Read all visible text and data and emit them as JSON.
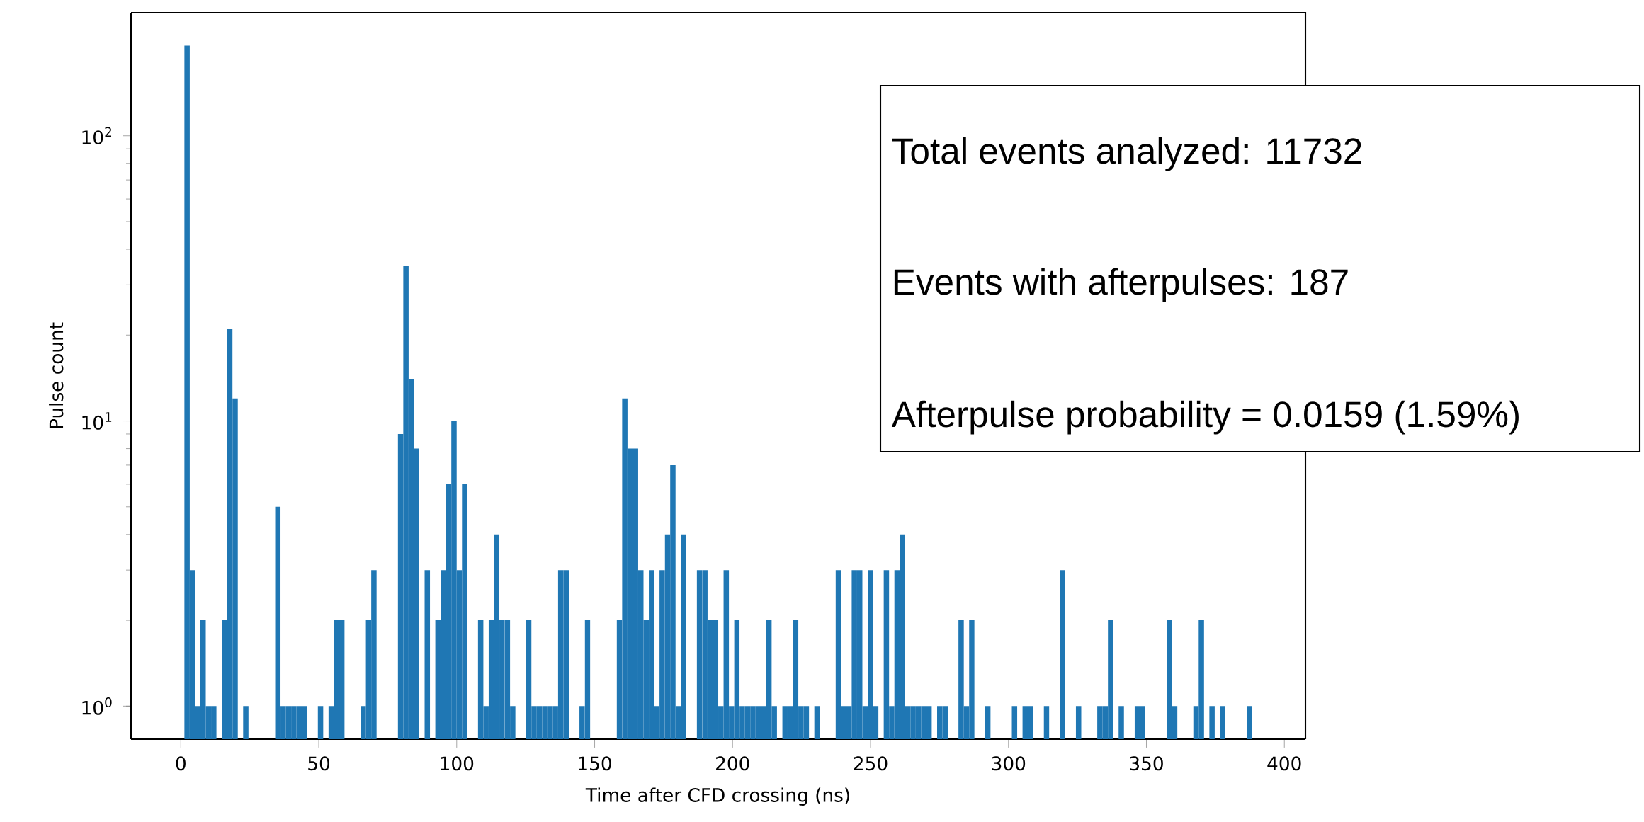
{
  "chart_data": {
    "type": "histogram",
    "xlabel": "Time after CFD crossing (ns)",
    "ylabel": "Pulse count",
    "color": "#1f77b4",
    "log": "y",
    "bins": [
      1.3,
      3.235,
      5.17,
      7.105,
      9.04,
      10.975,
      12.91,
      14.845,
      16.78,
      18.715,
      20.65,
      22.585,
      24.52,
      26.455,
      28.39,
      30.325,
      32.26,
      34.195,
      36.13,
      38.065,
      40,
      41.935,
      43.87,
      45.805,
      47.74,
      49.675,
      51.61,
      53.545,
      55.48,
      57.415,
      59.35,
      61.285,
      63.22,
      65.155,
      67.09,
      69.025,
      70.96,
      72.895,
      74.83,
      76.765,
      78.7,
      80.635,
      82.57,
      84.505,
      86.44,
      88.375,
      90.31,
      92.245,
      94.18,
      96.115,
      98.05,
      99.985,
      101.92,
      103.855,
      105.79,
      107.725,
      109.66,
      111.595,
      113.53,
      115.465,
      117.4,
      119.335,
      121.27,
      123.205,
      125.14,
      127.075,
      129.01,
      130.945,
      132.88,
      134.815,
      136.75,
      138.685,
      140.62,
      142.555,
      144.49,
      146.425,
      148.36,
      150.295,
      152.23,
      154.165,
      156.1,
      158.035,
      159.97,
      161.905,
      163.84,
      165.775,
      167.71,
      169.645,
      171.58,
      173.515,
      175.45,
      177.385,
      179.32,
      181.255,
      183.19,
      185.125,
      187.06,
      188.995,
      190.93,
      192.865,
      194.8,
      196.735,
      198.67,
      200.605,
      202.54,
      204.475,
      206.41,
      208.345,
      210.28,
      212.215,
      214.15,
      216.085,
      218.02,
      219.955,
      221.89,
      223.825,
      225.76,
      227.695,
      229.63,
      231.565,
      233.5,
      235.435,
      237.37,
      239.305,
      241.24,
      243.175,
      245.11,
      247.045,
      248.98,
      250.915,
      252.85,
      254.785,
      256.72,
      258.655,
      260.59,
      262.525,
      264.46,
      266.395,
      268.33,
      270.265,
      272.2,
      274.135,
      276.07,
      278.005,
      279.94,
      281.875,
      283.81,
      285.745,
      287.68,
      289.615,
      291.55,
      293.485,
      295.42,
      297.355,
      299.29,
      301.225,
      303.16,
      305.095,
      307.03,
      308.965,
      310.9,
      312.835,
      314.77,
      316.705,
      318.64,
      320.575,
      322.51,
      324.445,
      326.38,
      328.315,
      330.25,
      332.185,
      334.12,
      336.055,
      337.99,
      339.925,
      341.86,
      343.795,
      345.73,
      347.665,
      349.6,
      351.535,
      353.47,
      355.405,
      357.34,
      359.275,
      361.21,
      363.145,
      365.08,
      367.015,
      368.95,
      370.885,
      372.82,
      374.755,
      376.69,
      378.625,
      380.56,
      382.495,
      384.43,
      386.365,
      388.3
    ],
    "values": [
      207,
      3,
      1,
      2,
      1,
      1,
      null,
      2,
      21,
      12,
      null,
      1,
      null,
      null,
      null,
      null,
      null,
      5,
      1,
      1,
      1,
      1,
      1,
      null,
      null,
      1,
      null,
      1,
      2,
      2,
      null,
      null,
      null,
      1,
      2,
      3,
      null,
      null,
      null,
      null,
      9,
      35,
      14,
      8,
      null,
      3,
      null,
      2,
      3,
      6,
      10,
      3,
      6,
      null,
      null,
      2,
      1,
      2,
      4,
      2,
      2,
      1,
      null,
      null,
      2,
      1,
      1,
      1,
      1,
      1,
      3,
      3,
      null,
      null,
      1,
      2,
      null,
      null,
      null,
      null,
      null,
      2,
      12,
      8,
      8,
      3,
      2,
      3,
      1,
      3,
      4,
      7,
      1,
      4,
      null,
      null,
      3,
      3,
      2,
      2,
      1,
      3,
      1,
      2,
      1,
      1,
      1,
      1,
      1,
      2,
      1,
      null,
      1,
      1,
      2,
      1,
      1,
      null,
      1,
      null,
      null,
      null,
      3,
      1,
      1,
      3,
      3,
      1,
      3,
      1,
      null,
      3,
      1,
      3,
      4,
      1,
      1,
      1,
      1,
      1,
      null,
      1,
      1,
      null,
      null,
      2,
      1,
      2,
      null,
      null,
      1,
      null,
      null,
      null,
      null,
      1,
      null,
      1,
      1,
      null,
      null,
      1,
      null,
      null,
      3,
      null,
      null,
      1,
      null,
      null,
      null,
      1,
      1,
      2,
      null,
      1,
      null,
      null,
      1,
      1,
      null,
      null,
      null,
      null,
      2,
      1,
      null,
      null,
      null,
      1,
      2,
      null,
      1,
      null,
      1,
      null,
      null,
      null,
      null,
      1
    ],
    "xlim": [
      -18.05,
      407.65
    ],
    "ylim": [
      0.766,
      270
    ],
    "xticks": [
      0,
      50,
      100,
      150,
      200,
      250,
      300,
      350,
      400
    ],
    "yticks": [
      {
        "value": 1,
        "label": "10$^{0}$"
      },
      {
        "value": 10,
        "label": "10$^{1}$"
      },
      {
        "value": 100,
        "label": "10$^{2}$"
      }
    ],
    "annotations": [
      "Total events analyzed: 11732",
      "Events with afterpulses: 187",
      "Afterpulse probability = 0.0159 (1.59%)"
    ]
  }
}
